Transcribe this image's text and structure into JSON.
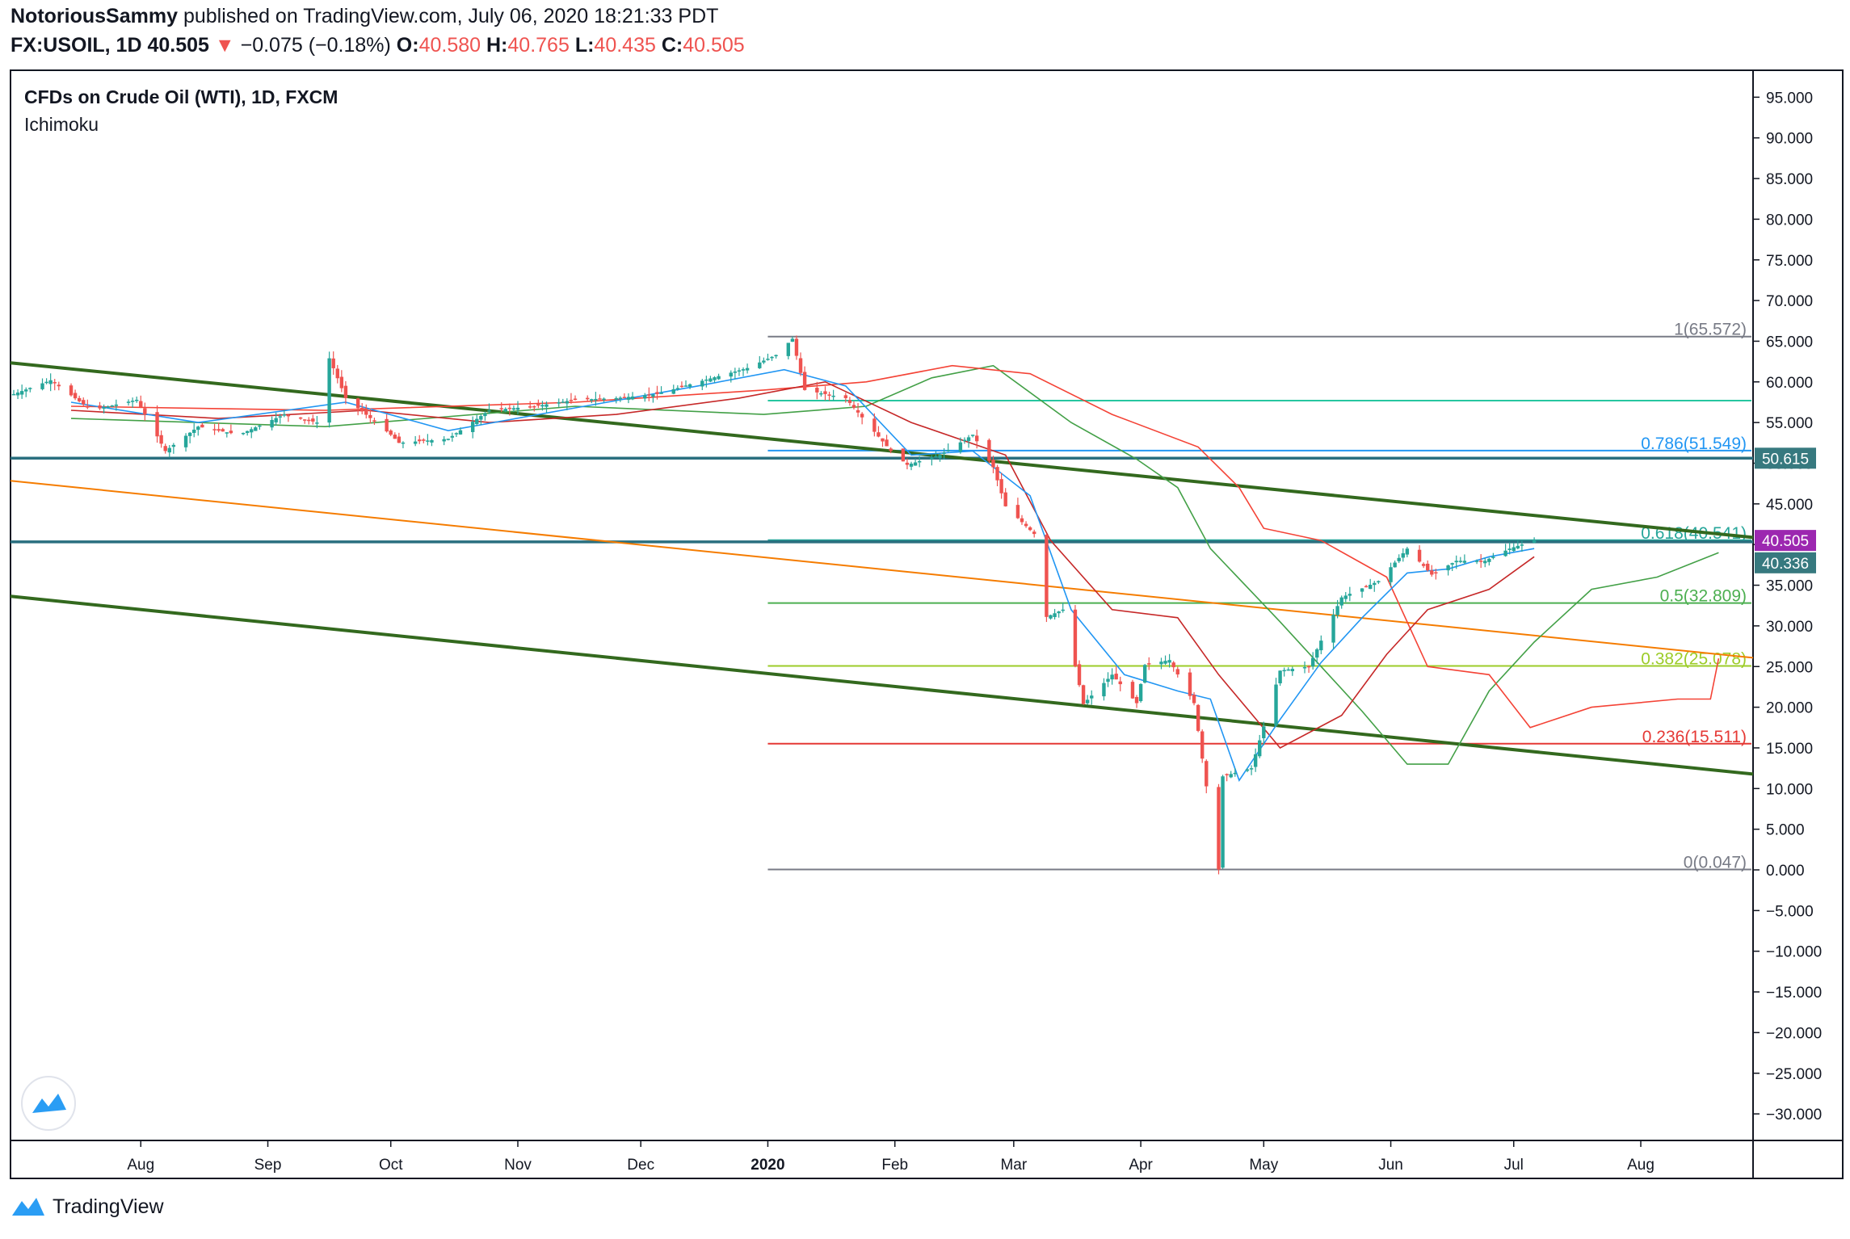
{
  "header": {
    "author": "NotoriousSammy",
    "published_text": "published on TradingView.com, July 06, 2020 18:21:33 PDT",
    "symbol": "FX:USOIL, 1D",
    "last": "40.505",
    "change_arrow": "▼",
    "change": "−0.075 (−0.18%)",
    "o_label": "O:",
    "o_value": "40.580",
    "h_label": "H:",
    "h_value": "40.765",
    "l_label": "L:",
    "l_value": "40.435",
    "c_label": "C:",
    "c_value": "40.505"
  },
  "legend": {
    "title": "CFDs on Crude Oil (WTI), 1D, FXCM",
    "indicator": "Ichimoku"
  },
  "footer": {
    "brand": "TradingView"
  },
  "colors": {
    "up": "#26a69a",
    "down": "#ef5350",
    "trend": "#33691e",
    "orange": "#f57c00",
    "tenkan": "#2196f3",
    "kijun": "#c62828",
    "span_a": "#43a047",
    "span_b": "#f44336",
    "hline": "#2a6f7f",
    "last_price_bg": "#9c27b0",
    "hline_label_bg": "#37797f"
  },
  "chart_data": {
    "type": "candlestick",
    "title": "CFDs on Crude Oil (WTI), 1D, FXCM",
    "x_ticks": [
      "Aug",
      "Sep",
      "Oct",
      "Nov",
      "Dec",
      "2020",
      "Feb",
      "Mar",
      "Apr",
      "May",
      "Jun",
      "Jul",
      "Aug"
    ],
    "y_ticks": [
      95,
      90,
      85,
      80,
      75,
      70,
      65,
      60,
      55,
      50,
      45,
      40,
      35,
      30,
      25,
      20,
      15,
      10,
      5,
      0,
      -5,
      -10,
      -15,
      -20,
      -25,
      -30
    ],
    "y_tick_labels": [
      "95.000",
      "90.000",
      "85.000",
      "80.000",
      "75.000",
      "70.000",
      "65.000",
      "60.000",
      "55.000",
      "50.000",
      "45.000",
      "40.000",
      "35.000",
      "30.000",
      "25.000",
      "20.000",
      "15.000",
      "10.000",
      "5.000",
      "0.000",
      "−5.000",
      "−10.000",
      "−15.000",
      "−20.000",
      "−25.000",
      "−30.000"
    ],
    "ylim": [
      -33,
      98
    ],
    "price_labels": [
      {
        "value": 50.615,
        "text": "50.615",
        "kind": "hline"
      },
      {
        "value": 40.505,
        "text": "40.505",
        "kind": "last"
      },
      {
        "value": 40.336,
        "text": "40.336",
        "kind": "hline"
      }
    ],
    "fib": {
      "from_date": "2020-01-01",
      "to_date": "2020-08-28",
      "levels": [
        {
          "ratio": 1,
          "price": 65.572,
          "label": "1(65.572)",
          "color": "#787b86"
        },
        {
          "ratio": 0.786,
          "price": 51.549,
          "label": "0.786(51.549)",
          "color": "#2196f3"
        },
        {
          "ratio": 0.618,
          "price": 40.541,
          "label": "0.618(40.541)",
          "color": "#26a69a"
        },
        {
          "ratio": 0.5,
          "price": 32.809,
          "label": "0.5(32.809)",
          "color": "#4caf50"
        },
        {
          "ratio": 0.382,
          "price": 25.078,
          "label": "0.382(25.078)",
          "color": "#9ccc28"
        },
        {
          "ratio": 0.236,
          "price": 15.511,
          "label": "0.236(15.511)",
          "color": "#e53935"
        },
        {
          "ratio": 0,
          "price": 0.047,
          "label": "0(0.047)",
          "color": "#787b86"
        }
      ],
      "extra_levels": [
        {
          "price": 57.7,
          "color": "#26c6a0"
        }
      ]
    },
    "horizontal_lines": [
      50.615,
      40.336
    ],
    "trendlines": [
      {
        "color": "#33691e",
        "points": [
          [
            "2019-07-01",
            62.3
          ],
          [
            "2020-08-28",
            40.9
          ]
        ]
      },
      {
        "color": "#33691e",
        "points": [
          [
            "2019-07-01",
            33.6
          ],
          [
            "2020-08-28",
            11.8
          ]
        ]
      },
      {
        "color": "#f57c00",
        "points": [
          [
            "2019-07-01",
            47.8
          ],
          [
            "2020-08-28",
            26.1
          ]
        ]
      }
    ],
    "price_series": {
      "name": "USOIL daily close (approx.)",
      "points": [
        [
          "2019-07-01",
          58.5
        ],
        [
          "2019-07-10",
          60.2
        ],
        [
          "2019-07-20",
          56.5
        ],
        [
          "2019-07-31",
          57.8
        ],
        [
          "2019-08-07",
          51.5
        ],
        [
          "2019-08-15",
          54.5
        ],
        [
          "2019-08-25",
          53.5
        ],
        [
          "2019-09-05",
          56.0
        ],
        [
          "2019-09-13",
          55.0
        ],
        [
          "2019-09-16",
          62.9
        ],
        [
          "2019-09-20",
          58.0
        ],
        [
          "2019-10-01",
          53.5
        ],
        [
          "2019-10-03",
          52.5
        ],
        [
          "2019-10-15",
          53.0
        ],
        [
          "2019-10-25",
          56.5
        ],
        [
          "2019-11-05",
          57.0
        ],
        [
          "2019-11-15",
          57.8
        ],
        [
          "2019-11-25",
          58.0
        ],
        [
          "2019-12-05",
          58.5
        ],
        [
          "2019-12-15",
          60.0
        ],
        [
          "2019-12-27",
          61.7
        ],
        [
          "2020-01-03",
          63.3
        ],
        [
          "2020-01-07",
          65.3
        ],
        [
          "2020-01-10",
          59.0
        ],
        [
          "2020-01-20",
          58.0
        ],
        [
          "2020-01-31",
          51.5
        ],
        [
          "2020-02-04",
          49.8
        ],
        [
          "2020-02-12",
          51.0
        ],
        [
          "2020-02-20",
          53.5
        ],
        [
          "2020-02-25",
          49.5
        ],
        [
          "2020-02-28",
          44.7
        ],
        [
          "2020-03-06",
          41.3
        ],
        [
          "2020-03-09",
          31.1
        ],
        [
          "2020-03-13",
          32.0
        ],
        [
          "2020-03-18",
          20.4
        ],
        [
          "2020-03-25",
          24.0
        ],
        [
          "2020-03-31",
          20.5
        ],
        [
          "2020-04-02",
          25.2
        ],
        [
          "2020-04-08",
          25.8
        ],
        [
          "2020-04-14",
          20.5
        ],
        [
          "2020-04-20",
          0.047
        ],
        [
          "2020-04-21",
          11.5
        ],
        [
          "2020-04-28",
          12.5
        ],
        [
          "2020-05-05",
          24.5
        ],
        [
          "2020-05-12",
          25.0
        ],
        [
          "2020-05-20",
          33.5
        ],
        [
          "2020-05-29",
          35.5
        ],
        [
          "2020-06-05",
          39.5
        ],
        [
          "2020-06-11",
          36.3
        ],
        [
          "2020-06-17",
          38.0
        ],
        [
          "2020-06-24",
          38.0
        ],
        [
          "2020-06-30",
          39.5
        ],
        [
          "2020-07-06",
          40.505
        ]
      ]
    },
    "ichimoku": {
      "tenkan": {
        "name": "Tenkan",
        "color": "#2196f3",
        "points": [
          [
            "2019-07-15",
            57.5
          ],
          [
            "2019-08-15",
            55.0
          ],
          [
            "2019-09-20",
            57.5
          ],
          [
            "2019-10-15",
            54.0
          ],
          [
            "2019-11-15",
            56.8
          ],
          [
            "2019-12-15",
            59.5
          ],
          [
            "2020-01-05",
            61.5
          ],
          [
            "2020-01-20",
            59.5
          ],
          [
            "2020-02-05",
            51.0
          ],
          [
            "2020-02-20",
            51.5
          ],
          [
            "2020-03-05",
            46.0
          ],
          [
            "2020-03-15",
            32.0
          ],
          [
            "2020-03-28",
            24.0
          ],
          [
            "2020-04-10",
            22.0
          ],
          [
            "2020-04-18",
            21.0
          ],
          [
            "2020-04-25",
            11.0
          ],
          [
            "2020-05-05",
            18.5
          ],
          [
            "2020-05-15",
            25.5
          ],
          [
            "2020-05-25",
            31.0
          ],
          [
            "2020-06-05",
            36.5
          ],
          [
            "2020-06-15",
            37.0
          ],
          [
            "2020-06-25",
            38.5
          ],
          [
            "2020-07-06",
            39.5
          ]
        ]
      },
      "kijun": {
        "name": "Kijun",
        "color": "#c62828",
        "points": [
          [
            "2019-07-15",
            56.5
          ],
          [
            "2019-08-20",
            55.5
          ],
          [
            "2019-09-25",
            56.5
          ],
          [
            "2019-10-25",
            55.0
          ],
          [
            "2019-11-25",
            56.0
          ],
          [
            "2019-12-25",
            58.0
          ],
          [
            "2020-01-15",
            60.0
          ],
          [
            "2020-02-05",
            55.0
          ],
          [
            "2020-02-28",
            51.0
          ],
          [
            "2020-03-10",
            40.5
          ],
          [
            "2020-03-25",
            32.0
          ],
          [
            "2020-04-10",
            31.0
          ],
          [
            "2020-04-20",
            24.0
          ],
          [
            "2020-05-05",
            15.0
          ],
          [
            "2020-05-20",
            19.0
          ],
          [
            "2020-05-31",
            26.5
          ],
          [
            "2020-06-10",
            32.0
          ],
          [
            "2020-06-25",
            34.5
          ],
          [
            "2020-07-06",
            38.5
          ]
        ]
      },
      "senkou_a": {
        "name": "Senkou Span A",
        "color": "#43a047",
        "points": [
          [
            "2019-07-15",
            55.5
          ],
          [
            "2019-09-15",
            54.5
          ],
          [
            "2019-11-15",
            57.0
          ],
          [
            "2019-12-31",
            56.0
          ],
          [
            "2020-01-25",
            57.0
          ],
          [
            "2020-02-10",
            60.5
          ],
          [
            "2020-02-25",
            62.0
          ],
          [
            "2020-03-15",
            55.0
          ],
          [
            "2020-03-31",
            50.5
          ],
          [
            "2020-04-10",
            47.0
          ],
          [
            "2020-04-18",
            39.5
          ],
          [
            "2020-05-05",
            30.5
          ],
          [
            "2020-05-25",
            19.5
          ],
          [
            "2020-06-05",
            13.0
          ],
          [
            "2020-06-15",
            13.0
          ],
          [
            "2020-06-25",
            22.0
          ],
          [
            "2020-07-06",
            28.0
          ],
          [
            "2020-07-20",
            34.5
          ],
          [
            "2020-08-05",
            36.0
          ],
          [
            "2020-08-20",
            39.0
          ]
        ]
      },
      "senkou_b": {
        "name": "Senkou Span B",
        "color": "#f44336",
        "points": [
          [
            "2019-07-15",
            57.0
          ],
          [
            "2019-09-15",
            56.5
          ],
          [
            "2019-11-15",
            57.5
          ],
          [
            "2019-12-31",
            59.0
          ],
          [
            "2020-01-25",
            60.0
          ],
          [
            "2020-02-15",
            62.0
          ],
          [
            "2020-03-05",
            61.0
          ],
          [
            "2020-03-25",
            56.0
          ],
          [
            "2020-04-15",
            52.0
          ],
          [
            "2020-04-25",
            47.0
          ],
          [
            "2020-05-01",
            42.0
          ],
          [
            "2020-05-15",
            40.5
          ],
          [
            "2020-05-31",
            36.0
          ],
          [
            "2020-06-10",
            25.0
          ],
          [
            "2020-06-25",
            24.0
          ],
          [
            "2020-07-05",
            17.5
          ],
          [
            "2020-07-20",
            20.0
          ],
          [
            "2020-08-10",
            21.0
          ],
          [
            "2020-08-18",
            21.0
          ],
          [
            "2020-08-20",
            26.0
          ]
        ]
      }
    }
  }
}
